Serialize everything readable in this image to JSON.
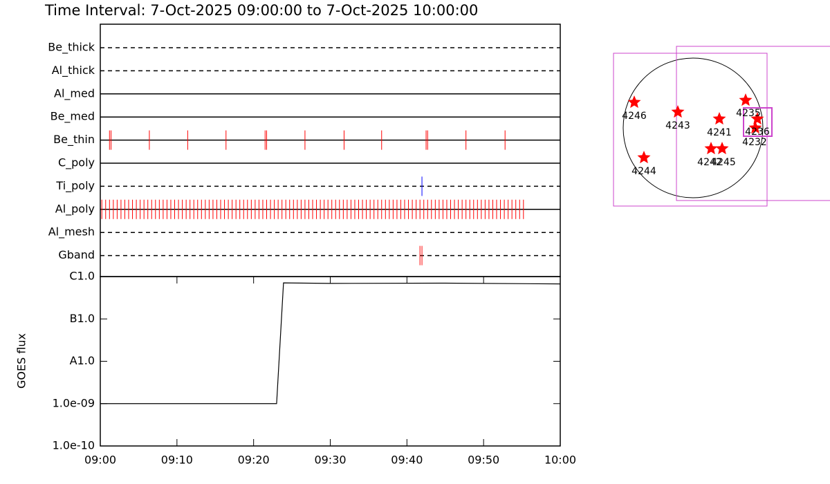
{
  "title": "Time Interval:  7-Oct-2025 09:00:00 to  7-Oct-2025 10:00:00",
  "chart_data": [
    {
      "type": "timeline",
      "categories": [
        "Be_thick",
        "Al_thick",
        "Al_med",
        "Be_med",
        "Be_thin",
        "C_poly",
        "Ti_poly",
        "Al_poly",
        "Al_mesh",
        "Gband"
      ],
      "line_styles": [
        "dashed",
        "dashed",
        "solid",
        "solid",
        "solid",
        "solid",
        "dashed",
        "solid",
        "dashed",
        "dashed"
      ],
      "event_colors": [
        "#ff0000",
        "#ff0000",
        "#ff0000",
        "#ff0000",
        "#ff0000",
        "#ff0000",
        "#0000ff",
        "#ff0000",
        "#ff0000",
        "#ff0000"
      ],
      "events": [
        [],
        [],
        [],
        [],
        [
          1.2,
          1.4,
          6.4,
          11.4,
          16.4,
          21.5,
          21.7,
          26.7,
          31.8,
          36.7,
          42.5,
          42.7,
          47.7,
          52.8
        ],
        [],
        [
          41.96
        ],
        [
          0.2,
          0.7,
          1.2,
          1.7,
          2.2,
          2.7,
          3.2,
          3.7,
          4.2,
          4.7,
          5.2,
          5.7,
          6.2,
          6.7,
          7.2,
          7.7,
          8.2,
          8.7,
          9.2,
          9.7,
          10.2,
          10.7,
          11.2,
          11.7,
          12.2,
          12.7,
          13.2,
          13.7,
          14.2,
          14.7,
          15.2,
          15.7,
          16.2,
          16.7,
          17.2,
          17.7,
          18.2,
          18.7,
          19.2,
          19.7,
          20.2,
          20.7,
          21.2,
          21.7,
          22.2,
          22.7,
          23.2,
          23.7,
          24.2,
          24.7,
          25.2,
          25.7,
          26.2,
          26.7,
          27.2,
          27.7,
          28.2,
          28.7,
          29.2,
          29.7,
          30.2,
          30.7,
          31.2,
          31.7,
          32.2,
          32.7,
          33.2,
          33.7,
          34.2,
          34.7,
          35.2,
          35.7,
          36.2,
          36.7,
          37.2,
          37.7,
          38.2,
          38.7,
          39.2,
          39.7,
          40.2,
          40.7,
          41.2,
          41.7,
          42.2,
          42.7,
          43.2,
          43.7,
          44.2,
          44.7,
          45.2,
          45.7,
          46.2,
          46.7,
          47.2,
          47.7,
          48.2,
          48.7,
          49.2,
          49.7,
          50.2,
          50.7,
          51.2,
          51.7,
          52.2,
          52.7,
          53.2,
          53.7,
          54.2,
          54.7,
          55.2
        ],
        [],
        [
          41.7,
          41.96
        ]
      ],
      "xlim": [
        0,
        60
      ]
    },
    {
      "type": "line",
      "y_label": "GOES flux",
      "x": [
        0,
        23.0,
        23.9,
        30,
        45,
        60
      ],
      "values": [
        1e-09,
        1e-09,
        7.1e-07,
        6.9e-07,
        7e-07,
        6.7e-07
      ],
      "color": "#000000",
      "log_scale": true,
      "ylim": [
        1e-10,
        1e-06
      ],
      "yticks": [
        {
          "value": 1e-10,
          "label": "1.0e-10"
        },
        {
          "value": 1e-09,
          "label": "1.0e-09"
        },
        {
          "value": 1e-08,
          "label": "A1.0"
        },
        {
          "value": 1e-07,
          "label": "B1.0"
        },
        {
          "value": 1e-06,
          "label": "C1.0"
        }
      ],
      "xlim": [
        0,
        60
      ],
      "xticks": [
        {
          "value": 0,
          "label": "09:00"
        },
        {
          "value": 10,
          "label": "09:10"
        },
        {
          "value": 20,
          "label": "09:20"
        },
        {
          "value": 30,
          "label": "09:30"
        },
        {
          "value": 40,
          "label": "09:40"
        },
        {
          "value": 50,
          "label": "09:50"
        },
        {
          "value": 60,
          "label": "10:00"
        }
      ]
    }
  ],
  "map": {
    "labels": [
      "4246",
      "4243",
      "4241",
      "4235",
      "4236",
      "4232",
      "4242",
      "4245",
      "4244"
    ]
  }
}
